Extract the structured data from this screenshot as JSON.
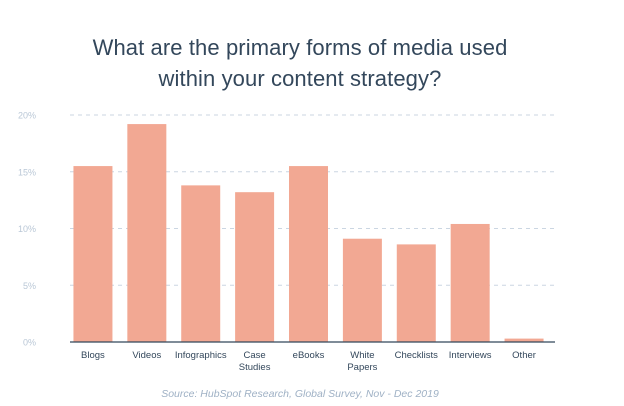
{
  "chart_data": {
    "type": "bar",
    "title_lines": [
      "What are the primary forms of media used",
      "within your content strategy?"
    ],
    "categories": [
      "Blogs",
      "Videos",
      "Infographics",
      "Case\nStudies",
      "eBooks",
      "White\nPapers",
      "Checklists",
      "Interviews",
      "Other"
    ],
    "values": [
      15.5,
      19.2,
      13.8,
      13.2,
      15.5,
      9.1,
      8.6,
      10.4,
      0.3
    ],
    "unit": "%",
    "ylim": [
      0,
      20
    ],
    "yticks": [
      0,
      5,
      10,
      15,
      20
    ],
    "ytick_labels": [
      "0%",
      "5%",
      "10%",
      "15%",
      "20%"
    ],
    "grid": true,
    "bar_color": "#f2a893",
    "source": "Source: HubSpot Research, Global Survey, Nov - Dec 2019"
  }
}
